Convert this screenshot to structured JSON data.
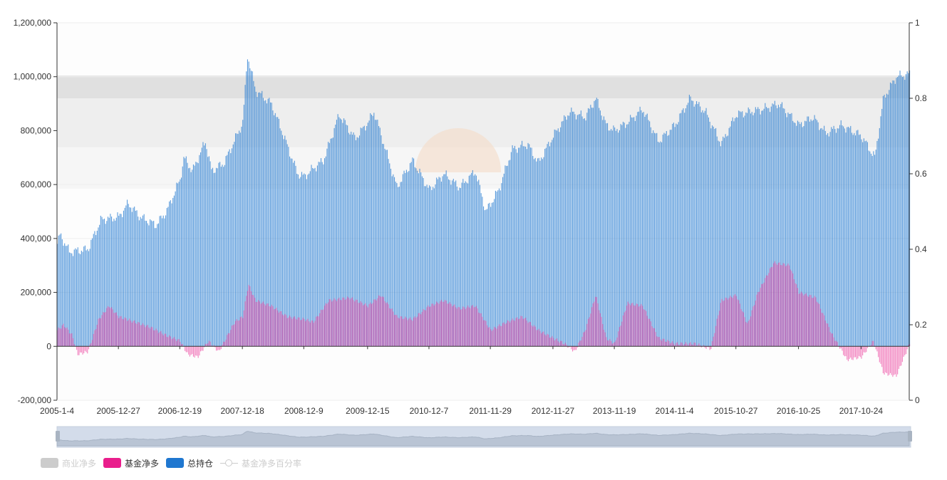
{
  "chart_data": {
    "type": "bar",
    "x_tick_labels": [
      "2005-1-4",
      "2005-12-27",
      "2006-12-19",
      "2007-12-18",
      "2008-12-9",
      "2009-12-15",
      "2010-12-7",
      "2011-11-29",
      "2012-11-27",
      "2013-11-19",
      "2014-11-4",
      "2015-10-27",
      "2016-10-25",
      "2017-10-24"
    ],
    "x_range": [
      "2005-1-4",
      "2018-07-31"
    ],
    "y_left": {
      "ylim": [
        -200000,
        1200000
      ],
      "ticks": [
        "-200,000",
        "0",
        "200,000",
        "400,000",
        "600,000",
        "800,000",
        "1,000,000",
        "1,200,000"
      ]
    },
    "y_right": {
      "ylim": [
        0,
        1
      ],
      "ticks": [
        "0",
        "0.2",
        "0.4",
        "0.6",
        "0.8",
        "1"
      ]
    },
    "bands_right_axis": [
      {
        "from": 0.8,
        "to": 0.86,
        "color": "#e0e0e0"
      },
      {
        "from": 0.67,
        "to": 0.8,
        "color": "#eeeeee"
      },
      {
        "from": 0.56,
        "to": 0.67,
        "color": "#f6f6f6"
      }
    ],
    "series": [
      {
        "name": "商业净多",
        "color": "#cccccc",
        "visible": false
      },
      {
        "name": "总持仓",
        "color": "#1f77d0",
        "anchors": [
          [
            "2005-01-04",
            380000
          ],
          [
            "2005-01-20",
            415000
          ],
          [
            "2005-03-15",
            350000
          ],
          [
            "2005-07-01",
            360000
          ],
          [
            "2005-09-15",
            470000
          ],
          [
            "2005-12-27",
            480000
          ],
          [
            "2006-02-20",
            530000
          ],
          [
            "2006-05-01",
            480000
          ],
          [
            "2006-08-01",
            450000
          ],
          [
            "2006-10-01",
            500000
          ],
          [
            "2006-12-19",
            620000
          ],
          [
            "2007-01-10",
            700000
          ],
          [
            "2007-03-01",
            650000
          ],
          [
            "2007-05-15",
            760000
          ],
          [
            "2007-06-20",
            650000
          ],
          [
            "2007-09-01",
            680000
          ],
          [
            "2007-12-18",
            830000
          ],
          [
            "2008-01-15",
            1080000
          ],
          [
            "2008-03-01",
            950000
          ],
          [
            "2008-06-01",
            900000
          ],
          [
            "2008-08-01",
            800000
          ],
          [
            "2008-11-01",
            640000
          ],
          [
            "2008-12-09",
            630000
          ],
          [
            "2009-02-01",
            660000
          ],
          [
            "2009-04-01",
            690000
          ],
          [
            "2009-07-01",
            860000
          ],
          [
            "2009-10-01",
            770000
          ],
          [
            "2009-12-15",
            830000
          ],
          [
            "2010-01-20",
            870000
          ],
          [
            "2010-04-01",
            720000
          ],
          [
            "2010-06-01",
            590000
          ],
          [
            "2010-09-01",
            690000
          ],
          [
            "2010-12-07",
            580000
          ],
          [
            "2011-03-01",
            640000
          ],
          [
            "2011-06-01",
            590000
          ],
          [
            "2011-09-01",
            650000
          ],
          [
            "2011-11-01",
            500000
          ],
          [
            "2012-01-15",
            580000
          ],
          [
            "2012-04-01",
            730000
          ],
          [
            "2012-07-01",
            750000
          ],
          [
            "2012-09-01",
            680000
          ],
          [
            "2012-11-27",
            780000
          ],
          [
            "2013-03-01",
            870000
          ],
          [
            "2013-06-01",
            850000
          ],
          [
            "2013-08-01",
            920000
          ],
          [
            "2013-10-01",
            820000
          ],
          [
            "2013-11-19",
            800000
          ],
          [
            "2014-02-01",
            830000
          ],
          [
            "2014-05-01",
            880000
          ],
          [
            "2014-08-01",
            760000
          ],
          [
            "2014-11-04",
            820000
          ],
          [
            "2015-02-01",
            920000
          ],
          [
            "2015-05-01",
            870000
          ],
          [
            "2015-08-01",
            750000
          ],
          [
            "2015-10-27",
            860000
          ],
          [
            "2016-01-15",
            870000
          ],
          [
            "2016-04-01",
            880000
          ],
          [
            "2016-07-01",
            900000
          ],
          [
            "2016-10-25",
            820000
          ],
          [
            "2017-01-15",
            850000
          ],
          [
            "2017-04-01",
            790000
          ],
          [
            "2017-07-01",
            820000
          ],
          [
            "2017-10-24",
            780000
          ],
          [
            "2018-01-10",
            700000
          ],
          [
            "2018-03-01",
            920000
          ],
          [
            "2018-05-15",
            1000000
          ],
          [
            "2018-07-31",
            1010000
          ]
        ]
      },
      {
        "name": "基金净多",
        "color": "#e91e8c",
        "anchors": [
          [
            "2005-01-04",
            60000
          ],
          [
            "2005-02-10",
            80000
          ],
          [
            "2005-04-01",
            40000
          ],
          [
            "2005-05-01",
            -30000
          ],
          [
            "2005-07-01",
            -20000
          ],
          [
            "2005-09-01",
            100000
          ],
          [
            "2005-11-01",
            150000
          ],
          [
            "2005-12-27",
            110000
          ],
          [
            "2006-04-01",
            90000
          ],
          [
            "2006-07-01",
            70000
          ],
          [
            "2006-10-01",
            40000
          ],
          [
            "2006-12-19",
            20000
          ],
          [
            "2007-02-01",
            -30000
          ],
          [
            "2007-04-01",
            -40000
          ],
          [
            "2007-06-01",
            20000
          ],
          [
            "2007-08-01",
            -20000
          ],
          [
            "2007-11-01",
            90000
          ],
          [
            "2007-12-18",
            110000
          ],
          [
            "2008-01-20",
            230000
          ],
          [
            "2008-03-01",
            170000
          ],
          [
            "2008-06-01",
            150000
          ],
          [
            "2008-09-01",
            110000
          ],
          [
            "2008-12-09",
            100000
          ],
          [
            "2009-02-01",
            90000
          ],
          [
            "2009-05-01",
            170000
          ],
          [
            "2009-09-01",
            180000
          ],
          [
            "2009-12-15",
            150000
          ],
          [
            "2010-03-01",
            190000
          ],
          [
            "2010-06-01",
            110000
          ],
          [
            "2010-09-01",
            100000
          ],
          [
            "2010-12-07",
            150000
          ],
          [
            "2011-03-01",
            170000
          ],
          [
            "2011-06-01",
            140000
          ],
          [
            "2011-09-01",
            150000
          ],
          [
            "2011-11-29",
            60000
          ],
          [
            "2012-03-01",
            90000
          ],
          [
            "2012-06-01",
            110000
          ],
          [
            "2012-09-01",
            60000
          ],
          [
            "2012-11-27",
            30000
          ],
          [
            "2013-02-01",
            10000
          ],
          [
            "2013-04-01",
            -20000
          ],
          [
            "2013-06-01",
            60000
          ],
          [
            "2013-08-01",
            190000
          ],
          [
            "2013-10-01",
            30000
          ],
          [
            "2013-11-19",
            10000
          ],
          [
            "2014-02-01",
            160000
          ],
          [
            "2014-05-01",
            150000
          ],
          [
            "2014-08-01",
            30000
          ],
          [
            "2014-11-04",
            10000
          ],
          [
            "2015-03-01",
            10000
          ],
          [
            "2015-06-01",
            -10000
          ],
          [
            "2015-08-01",
            170000
          ],
          [
            "2015-10-27",
            190000
          ],
          [
            "2016-01-01",
            80000
          ],
          [
            "2016-03-01",
            200000
          ],
          [
            "2016-06-01",
            310000
          ],
          [
            "2016-09-01",
            300000
          ],
          [
            "2016-10-25",
            200000
          ],
          [
            "2017-02-01",
            180000
          ],
          [
            "2017-05-01",
            50000
          ],
          [
            "2017-08-01",
            -50000
          ],
          [
            "2017-10-24",
            -40000
          ],
          [
            "2018-01-01",
            20000
          ],
          [
            "2018-03-01",
            -100000
          ],
          [
            "2018-05-15",
            -110000
          ],
          [
            "2018-07-31",
            10000
          ]
        ]
      },
      {
        "name": "基金净多百分率",
        "color": "#cccccc",
        "visible": false
      }
    ],
    "legend_position": "bottom-left",
    "grid": true
  },
  "colors": {
    "open_interest": "#1f77d0",
    "fund_net_long": "#e91e8c",
    "disabled": "#cccccc",
    "axis": "#333333"
  }
}
